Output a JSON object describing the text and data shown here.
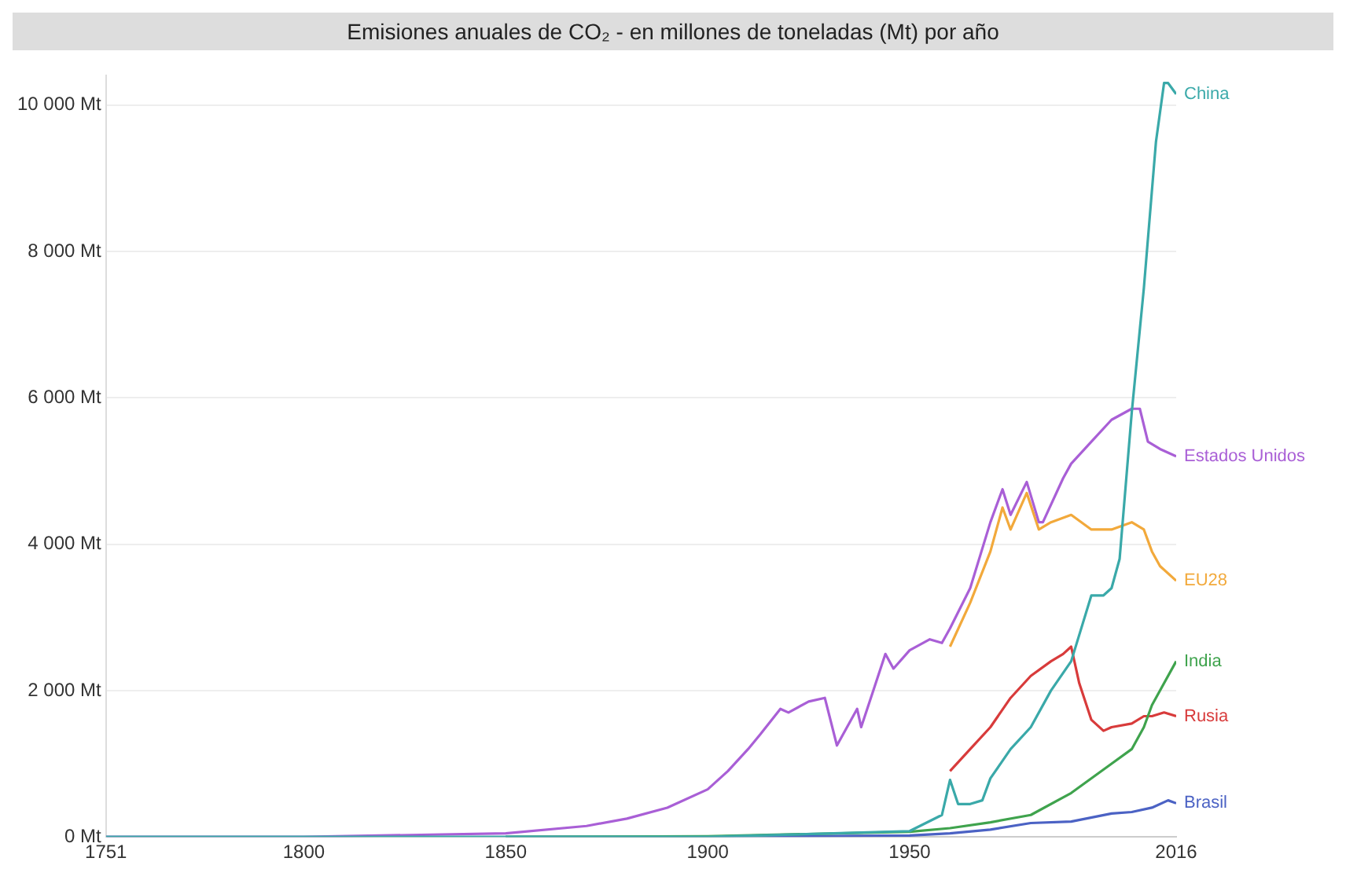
{
  "chart_data": {
    "type": "line",
    "title": "Emisiones anuales de CO₂ - en millones de toneladas (Mt) por año",
    "xlim": [
      1751,
      2016
    ],
    "xticks": [
      1751,
      1800,
      1850,
      1900,
      1950,
      2016
    ],
    "ylim": [
      0,
      10400
    ],
    "yticks": [
      {
        "value": 0,
        "label": "0 Mt"
      },
      {
        "value": 2000,
        "label": "2 000 Mt"
      },
      {
        "value": 4000,
        "label": "4 000 Mt"
      },
      {
        "value": 6000,
        "label": "6 000 Mt"
      },
      {
        "value": 8000,
        "label": "8 000 Mt"
      },
      {
        "value": 10000,
        "label": "10 000 Mt"
      }
    ],
    "grid": "y",
    "legend": false,
    "marker": "none",
    "line_style": "solid",
    "series": [
      {
        "name": "China",
        "color": "#3aa9a9",
        "x": [
          1751,
          1850,
          1900,
          1950,
          1958,
          1960,
          1962,
          1965,
          1968,
          1970,
          1975,
          1980,
          1985,
          1990,
          1995,
          1998,
          2000,
          2002,
          2005,
          2008,
          2011,
          2013,
          2014,
          2016
        ],
        "values": [
          0,
          0,
          0,
          80,
          300,
          780,
          450,
          450,
          500,
          800,
          1200,
          1500,
          2000,
          2400,
          3300,
          3300,
          3400,
          3800,
          5800,
          7500,
          9500,
          10300,
          10300,
          10150
        ]
      },
      {
        "name": "Estados Unidos",
        "color": "#a95fd6",
        "x": [
          1751,
          1800,
          1850,
          1870,
          1880,
          1890,
          1900,
          1905,
          1910,
          1913,
          1918,
          1920,
          1925,
          1929,
          1932,
          1937,
          1938,
          1941,
          1944,
          1946,
          1950,
          1955,
          1958,
          1960,
          1965,
          1970,
          1973,
          1975,
          1979,
          1982,
          1983,
          1988,
          1990,
          1995,
          2000,
          2005,
          2007,
          2009,
          2012,
          2016
        ],
        "values": [
          0,
          0,
          50,
          150,
          250,
          400,
          650,
          900,
          1200,
          1400,
          1750,
          1700,
          1850,
          1900,
          1250,
          1750,
          1500,
          2000,
          2500,
          2300,
          2550,
          2700,
          2650,
          2850,
          3400,
          4300,
          4750,
          4400,
          4850,
          4300,
          4300,
          4900,
          5100,
          5400,
          5700,
          5850,
          5850,
          5400,
          5300,
          5200
        ]
      },
      {
        "name": "EU28",
        "color": "#f2a93b",
        "x": [
          1960,
          1965,
          1970,
          1973,
          1975,
          1979,
          1982,
          1985,
          1990,
          1995,
          2000,
          2005,
          2008,
          2010,
          2012,
          2016
        ],
        "values": [
          2600,
          3200,
          3900,
          4500,
          4200,
          4700,
          4200,
          4300,
          4400,
          4200,
          4200,
          4300,
          4200,
          3900,
          3700,
          3500
        ]
      },
      {
        "name": "India",
        "color": "#3fa34d",
        "x": [
          1850,
          1900,
          1950,
          1960,
          1970,
          1980,
          1990,
          2000,
          2005,
          2008,
          2010,
          2013,
          2016
        ],
        "values": [
          0,
          10,
          70,
          120,
          200,
          300,
          600,
          1000,
          1200,
          1500,
          1800,
          2100,
          2400
        ]
      },
      {
        "name": "Rusia",
        "color": "#d83b3b",
        "x": [
          1960,
          1965,
          1970,
          1975,
          1980,
          1985,
          1988,
          1990,
          1992,
          1995,
          1998,
          2000,
          2005,
          2008,
          2010,
          2013,
          2016
        ],
        "values": [
          900,
          1200,
          1500,
          1900,
          2200,
          2400,
          2500,
          2600,
          2100,
          1600,
          1450,
          1500,
          1550,
          1650,
          1650,
          1700,
          1650
        ]
      },
      {
        "name": "Brasil",
        "color": "#4b62c4",
        "x": [
          1850,
          1900,
          1950,
          1960,
          1970,
          1980,
          1990,
          2000,
          2005,
          2010,
          2014,
          2016
        ],
        "values": [
          0,
          0,
          20,
          50,
          100,
          190,
          210,
          320,
          340,
          400,
          500,
          460
        ]
      }
    ]
  }
}
